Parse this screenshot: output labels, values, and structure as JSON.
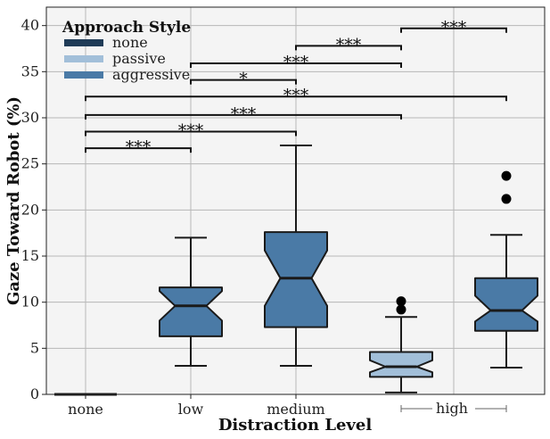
{
  "chart_data": {
    "type": "box",
    "xlabel": "Distraction Level",
    "ylabel": "Gaze Toward Robot (%)",
    "ylim": [
      0,
      42
    ],
    "yticks": [
      0,
      5,
      10,
      15,
      20,
      25,
      30,
      35,
      40
    ],
    "grid": true,
    "categories": [
      "none",
      "low",
      "medium",
      "high"
    ],
    "legend": {
      "title": "Approach Style",
      "placement": "top-left",
      "entries": [
        {
          "name": "none",
          "color": "#1f3b57"
        },
        {
          "name": "passive",
          "color": "#a2bfd9"
        },
        {
          "name": "aggressive",
          "color": "#4a7aa6"
        }
      ]
    },
    "boxes": [
      {
        "group": "none",
        "style": "none",
        "color": "#1f3b57",
        "whisker_low": 0,
        "q1": 0,
        "median": 0,
        "q3": 0,
        "whisker_high": 0,
        "notch_low": 0,
        "notch_high": 0,
        "outliers": []
      },
      {
        "group": "low",
        "style": "aggressive",
        "color": "#4a7aa6",
        "whisker_low": 3.1,
        "q1": 6.3,
        "median": 9.6,
        "q3": 11.6,
        "whisker_high": 17.0,
        "notch_low": 8.0,
        "notch_high": 11.2,
        "outliers": []
      },
      {
        "group": "medium",
        "style": "aggressive",
        "color": "#4a7aa6",
        "whisker_low": 3.1,
        "q1": 7.3,
        "median": 12.6,
        "q3": 17.6,
        "whisker_high": 27.0,
        "notch_low": 9.6,
        "notch_high": 15.6,
        "outliers": []
      },
      {
        "group": "high",
        "style": "passive",
        "color": "#a2bfd9",
        "whisker_low": 0.2,
        "q1": 1.9,
        "median": 3.0,
        "q3": 4.6,
        "whisker_high": 8.4,
        "notch_low": 2.4,
        "notch_high": 3.7,
        "outliers": [
          9.2,
          10.1
        ]
      },
      {
        "group": "high",
        "style": "aggressive",
        "color": "#4a7aa6",
        "whisker_low": 2.9,
        "q1": 6.9,
        "median": 9.1,
        "q3": 12.6,
        "whisker_high": 17.3,
        "notch_low": 7.9,
        "notch_high": 10.7,
        "outliers": [
          21.2,
          23.7
        ]
      }
    ],
    "significance": [
      {
        "from": 0,
        "to": 1,
        "y": 26.7,
        "label": "***"
      },
      {
        "from": 0,
        "to": 2,
        "y": 28.5,
        "label": "***"
      },
      {
        "from": 0,
        "to": 3,
        "y": 30.3,
        "label": "***"
      },
      {
        "from": 0,
        "to": 4,
        "y": 32.3,
        "label": "***"
      },
      {
        "from": 1,
        "to": 2,
        "y": 34.1,
        "label": "*"
      },
      {
        "from": 1,
        "to": 3,
        "y": 35.9,
        "label": "***"
      },
      {
        "from": 2,
        "to": 3,
        "y": 37.8,
        "label": "***"
      },
      {
        "from": 3,
        "to": 4,
        "y": 39.7,
        "label": "***"
      }
    ]
  }
}
